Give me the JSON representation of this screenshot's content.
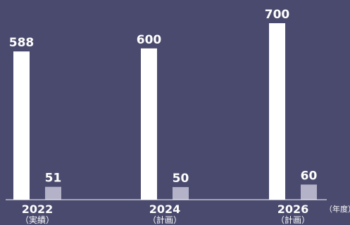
{
  "chart_data": {
    "type": "bar",
    "categories": [
      "2022",
      "2024",
      "2026"
    ],
    "category_sublabels": [
      "（実績）",
      "（計画）",
      "（計画）"
    ],
    "unit_label": "（年度）",
    "series": [
      {
        "values": [
          588,
          600,
          700
        ],
        "color": "#ffffff"
      },
      {
        "values": [
          51,
          50,
          60
        ],
        "color": "#b4b2c8"
      }
    ],
    "value_labels": [
      [
        "588",
        "600",
        "700"
      ],
      [
        "51",
        "50",
        "60"
      ]
    ],
    "ylim": [
      0,
      700
    ],
    "grid": false,
    "legend": "none"
  }
}
